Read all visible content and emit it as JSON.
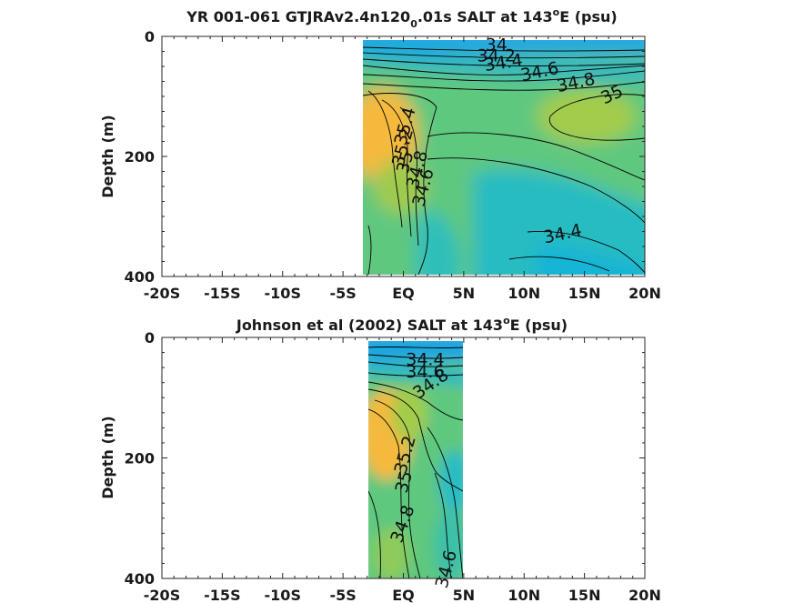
{
  "chart_data": [
    {
      "type": "heatmap",
      "title_main": "YR 001-061 GTJRAv2.4n120",
      "title_sub": "0",
      "title_tail": ".01s SALT at 143",
      "title_sup": "o",
      "title_end": "E (psu)",
      "ylabel": "Depth (m)",
      "xlim": [
        -20,
        20
      ],
      "ylim": [
        0,
        400
      ],
      "x_ticks": [
        {
          "value": -20,
          "label": "-20S"
        },
        {
          "value": -15,
          "label": "-15S"
        },
        {
          "value": -10,
          "label": "-10S"
        },
        {
          "value": -5,
          "label": "-5S"
        },
        {
          "value": 0,
          "label": "EQ"
        },
        {
          "value": 5,
          "label": "5N"
        },
        {
          "value": 10,
          "label": "10N"
        },
        {
          "value": 15,
          "label": "15N"
        },
        {
          "value": 20,
          "label": "20N"
        }
      ],
      "y_ticks": [
        {
          "value": 0,
          "label": "0"
        },
        {
          "value": 200,
          "label": "200"
        },
        {
          "value": 400,
          "label": "400"
        }
      ],
      "data_extent": {
        "lat": [
          -3.3,
          20
        ],
        "depth": [
          5,
          400
        ]
      },
      "contour_labels": [
        {
          "text": "34",
          "lat": 7.7,
          "depth": 15,
          "angle": 0
        },
        {
          "text": "34.2",
          "lat": 7.7,
          "depth": 33,
          "angle": 0
        },
        {
          "text": "34.4",
          "lat": 8.3,
          "depth": 45,
          "angle": -8
        },
        {
          "text": "34.6",
          "lat": 11.3,
          "depth": 60,
          "angle": -12
        },
        {
          "text": "34.8",
          "lat": 14.3,
          "depth": 78,
          "angle": -12
        },
        {
          "text": "35",
          "lat": 17.3,
          "depth": 98,
          "angle": -25
        },
        {
          "text": "35.4",
          "lat": 0.2,
          "depth": 150,
          "angle": -75
        },
        {
          "text": "35.2",
          "lat": 0.0,
          "depth": 185,
          "angle": -75
        },
        {
          "text": "35",
          "lat": 0.2,
          "depth": 210,
          "angle": -75
        },
        {
          "text": "34.8",
          "lat": 1.2,
          "depth": 222,
          "angle": -75
        },
        {
          "text": "34.6",
          "lat": 1.7,
          "depth": 252,
          "angle": -75
        },
        {
          "text": "34.4",
          "lat": 13.2,
          "depth": 330,
          "angle": -12
        }
      ]
    },
    {
      "type": "heatmap",
      "title_main": "Johnson et al (2002) SALT at 143",
      "title_sup": "o",
      "title_end": "E (psu)",
      "ylabel": "Depth (m)",
      "xlim": [
        -20,
        20
      ],
      "ylim": [
        0,
        400
      ],
      "x_ticks": [
        {
          "value": -20,
          "label": "-20S"
        },
        {
          "value": -15,
          "label": "-15S"
        },
        {
          "value": -10,
          "label": "-10S"
        },
        {
          "value": -5,
          "label": "-5S"
        },
        {
          "value": 0,
          "label": "EQ"
        },
        {
          "value": 5,
          "label": "5N"
        },
        {
          "value": 10,
          "label": "10N"
        },
        {
          "value": 15,
          "label": "15N"
        },
        {
          "value": 20,
          "label": "20N"
        }
      ],
      "y_ticks": [
        {
          "value": 0,
          "label": "0"
        },
        {
          "value": 200,
          "label": "200"
        },
        {
          "value": 400,
          "label": "400"
        }
      ],
      "data_extent": {
        "lat": [
          -3.1,
          5
        ],
        "depth": [
          5,
          400
        ]
      },
      "contour_labels": [
        {
          "text": "34.4",
          "lat": 1.8,
          "depth": 38,
          "angle": 0
        },
        {
          "text": "34.6",
          "lat": 1.8,
          "depth": 58,
          "angle": 0
        },
        {
          "text": "34.8",
          "lat": 2.3,
          "depth": 78,
          "angle": -35
        },
        {
          "text": "35.2",
          "lat": 0.2,
          "depth": 195,
          "angle": -75
        },
        {
          "text": "35",
          "lat": 0.1,
          "depth": 240,
          "angle": -75
        },
        {
          "text": "34.8",
          "lat": 0.0,
          "depth": 310,
          "angle": -70
        },
        {
          "text": "34.6",
          "lat": 3.6,
          "depth": 385,
          "angle": -75
        }
      ]
    }
  ],
  "colors": {
    "salt_low": "#1fa6df",
    "salt_mid_low": "#19bcc4",
    "salt_mid": "#5dc97c",
    "salt_mid_high": "#a6cb4a",
    "salt_high": "#f8b93c",
    "contour": "#000000",
    "axis": "#262626"
  }
}
